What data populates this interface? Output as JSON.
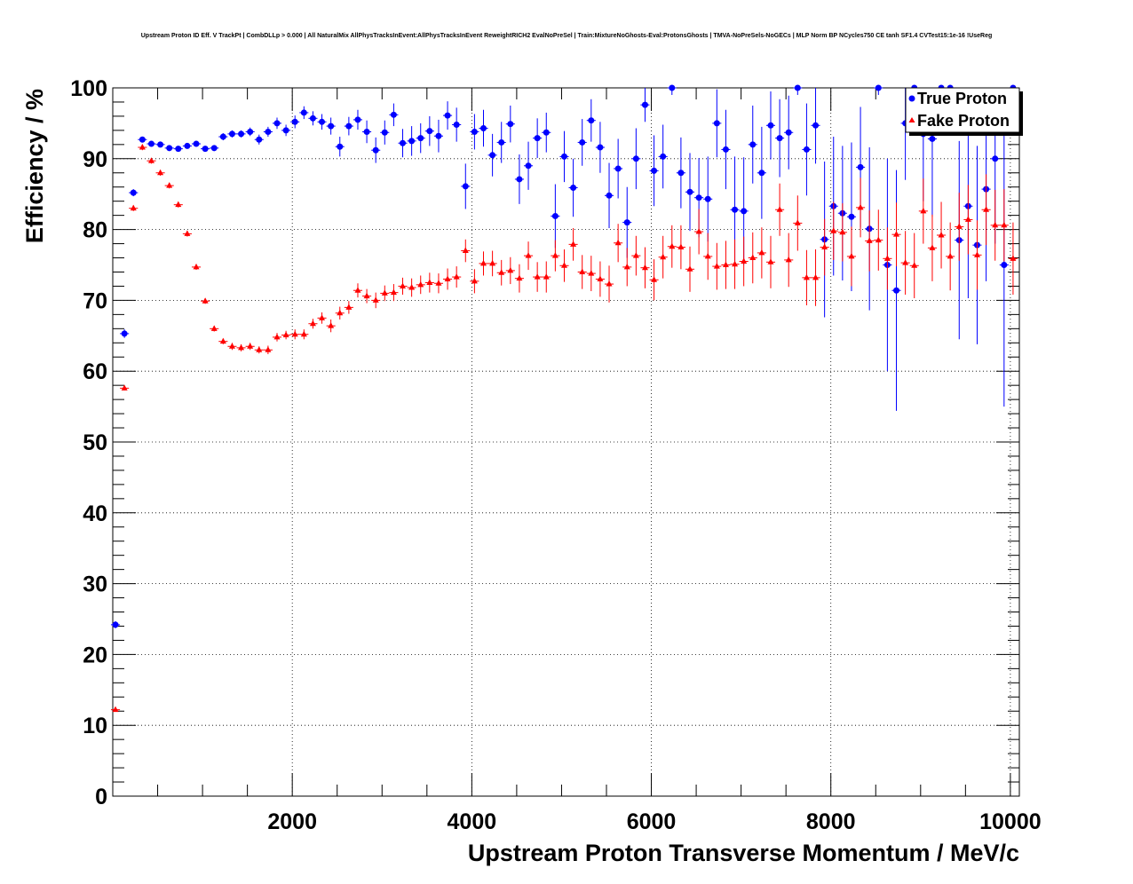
{
  "chart_data": {
    "type": "scatter",
    "title": "Upstream Proton ID Eff. V TrackPt | CombDLLp > 0.000 | All NaturalMix AllPhysTracksInEvent:AllPhysTracksInEvent ReweightRICH2 EvalNoPreSel | Train:MixtureNoGhosts-Eval:ProtonsGhosts | TMVA-NoPreSels-NoGECs | MLP Norm BP NCycles750 CE tanh SF1.4 CVTest15:1e-16 !UseReg",
    "xlabel": "Upstream Proton Transverse Momentum / MeV/c",
    "ylabel": "Efficiency / %",
    "xlim": [
      0,
      10100
    ],
    "ylim": [
      0,
      100
    ],
    "x_ticks": [
      "2000",
      "4000",
      "6000",
      "8000",
      "10000"
    ],
    "y_ticks": [
      "0",
      "10",
      "20",
      "30",
      "40",
      "50",
      "60",
      "70",
      "80",
      "90",
      "100"
    ],
    "grid": true,
    "legend_position": "top-right",
    "legend": [
      {
        "label": "True Proton",
        "color": "#0000ff",
        "marker": "circle"
      },
      {
        "label": "Fake Proton",
        "color": "#ff0000",
        "marker": "triangle"
      }
    ],
    "series": [
      {
        "name": "True Proton",
        "color": "#0000ff",
        "marker": "circle",
        "x": [
          30,
          130,
          230,
          330,
          430,
          530,
          630,
          730,
          830,
          930,
          1030,
          1130,
          1230,
          1330,
          1430,
          1530,
          1630,
          1730,
          1830,
          1930,
          2030,
          2130,
          2230,
          2330,
          2430,
          2530,
          2630,
          2730,
          2830,
          2930,
          3030,
          3130,
          3230,
          3330,
          3430,
          3530,
          3630,
          3730,
          3830,
          3930,
          4030,
          4130,
          4230,
          4330,
          4430,
          4530,
          4630,
          4730,
          4830,
          4930,
          5030,
          5130,
          5230,
          5330,
          5430,
          5530,
          5630,
          5730,
          5830,
          5930,
          6030,
          6130,
          6230,
          6330,
          6430,
          6530,
          6630,
          6730,
          6830,
          6930,
          7030,
          7130,
          7230,
          7330,
          7430,
          7530,
          7630,
          7730,
          7830,
          7930,
          8030,
          8130,
          8230,
          8330,
          8430,
          8530,
          8630,
          8730,
          8830,
          8930,
          9030,
          9130,
          9230,
          9330,
          9430,
          9530,
          9630,
          9730,
          9830,
          9930,
          10030
        ],
        "y": [
          24.2,
          65.3,
          85.2,
          92.7,
          92.1,
          92.0,
          91.5,
          91.4,
          91.8,
          92.1,
          91.4,
          91.5,
          93.1,
          93.5,
          93.5,
          93.8,
          92.7,
          93.8,
          95.0,
          94.0,
          95.2,
          96.5,
          95.7,
          95.2,
          94.6,
          91.7,
          94.6,
          95.5,
          93.8,
          91.2,
          93.7,
          96.2,
          92.2,
          92.5,
          92.9,
          93.9,
          93.2,
          96.1,
          94.8,
          86.1,
          93.8,
          94.3,
          90.5,
          92.3,
          94.9,
          87.1,
          89.0,
          92.9,
          93.7,
          81.9,
          90.3,
          85.9,
          92.3,
          95.4,
          91.6,
          84.8,
          88.6,
          81.0,
          90.0,
          97.6,
          88.3,
          90.3,
          100.0,
          88.0,
          85.3,
          84.5,
          84.3,
          95.0,
          91.3,
          82.8,
          82.6,
          92.0,
          88.0,
          94.7,
          92.9,
          93.7,
          100.0,
          91.3,
          94.7,
          78.6,
          83.3,
          82.3,
          81.8,
          88.8,
          80.1,
          100.0,
          75.0,
          71.4,
          95.0,
          100.0,
          93.5,
          92.8,
          100.0,
          100.0,
          78.5,
          83.3,
          77.8,
          85.7,
          90.0,
          75.0,
          100.0
        ],
        "yerr": [
          0.5,
          0.6,
          0.5,
          0.4,
          0.3,
          0.3,
          0.3,
          0.3,
          0.3,
          0.3,
          0.4,
          0.4,
          0.5,
          0.5,
          0.5,
          0.6,
          0.7,
          0.7,
          0.8,
          0.8,
          0.9,
          0.9,
          1.0,
          1.1,
          1.2,
          1.4,
          1.3,
          1.4,
          1.6,
          1.8,
          1.7,
          1.6,
          2.0,
          2.1,
          2.1,
          2.1,
          2.3,
          2.0,
          2.4,
          3.2,
          2.5,
          2.6,
          3.0,
          2.9,
          2.6,
          3.5,
          3.4,
          2.8,
          2.8,
          4.5,
          3.6,
          4.1,
          3.3,
          3.0,
          3.6,
          4.6,
          4.2,
          5.0,
          4.3,
          2.4,
          5.0,
          4.5,
          1.0,
          5.0,
          5.5,
          5.6,
          6.0,
          4.8,
          5.6,
          7.5,
          7.6,
          5.5,
          6.5,
          4.8,
          5.5,
          5.2,
          1.0,
          6.5,
          5.4,
          11.0,
          9.8,
          9.5,
          10.5,
          8.5,
          11.5,
          1.0,
          15.0,
          17.0,
          8.0,
          1.0,
          9.5,
          11.0,
          1.0,
          1.0,
          14.0,
          13.0,
          14.0,
          13.0,
          12.0,
          20.0,
          1.0
        ]
      },
      {
        "name": "Fake Proton",
        "color": "#ff0000",
        "marker": "triangle",
        "x": [
          30,
          130,
          230,
          330,
          430,
          530,
          630,
          730,
          830,
          930,
          1030,
          1130,
          1230,
          1330,
          1430,
          1530,
          1630,
          1730,
          1830,
          1930,
          2030,
          2130,
          2230,
          2330,
          2430,
          2530,
          2630,
          2730,
          2830,
          2930,
          3030,
          3130,
          3230,
          3330,
          3430,
          3530,
          3630,
          3730,
          3830,
          3930,
          4030,
          4130,
          4230,
          4330,
          4430,
          4530,
          4630,
          4730,
          4830,
          4930,
          5030,
          5130,
          5230,
          5330,
          5430,
          5530,
          5630,
          5730,
          5830,
          5930,
          6030,
          6130,
          6230,
          6330,
          6430,
          6530,
          6630,
          6730,
          6830,
          6930,
          7030,
          7130,
          7230,
          7330,
          7430,
          7530,
          7630,
          7730,
          7830,
          7930,
          8030,
          8130,
          8230,
          8330,
          8430,
          8530,
          8630,
          8730,
          8830,
          8930,
          9030,
          9130,
          9230,
          9330,
          9430,
          9530,
          9630,
          9730,
          9830,
          9930,
          10030
        ],
        "y": [
          12.2,
          57.6,
          83.0,
          91.6,
          89.7,
          88.0,
          86.2,
          83.5,
          79.4,
          74.7,
          69.9,
          66.0,
          64.2,
          63.5,
          63.3,
          63.5,
          63.0,
          63.0,
          64.8,
          65.1,
          65.2,
          65.2,
          66.7,
          67.5,
          66.4,
          68.2,
          69.0,
          71.4,
          70.6,
          70.0,
          71.0,
          71.1,
          72.0,
          71.8,
          72.2,
          72.5,
          72.4,
          73.0,
          73.3,
          77.0,
          72.7,
          75.2,
          75.2,
          73.9,
          74.2,
          73.1,
          76.3,
          73.3,
          73.3,
          76.3,
          74.9,
          77.9,
          74.0,
          73.8,
          73.0,
          72.3,
          78.1,
          74.7,
          76.3,
          74.6,
          72.9,
          76.1,
          77.6,
          77.5,
          74.4,
          79.7,
          76.2,
          74.8,
          75.0,
          75.1,
          75.5,
          76.0,
          76.7,
          75.4,
          82.8,
          75.7,
          80.9,
          73.2,
          73.2,
          77.5,
          79.8,
          79.6,
          76.2,
          83.1,
          78.4,
          78.5,
          75.9,
          79.3,
          75.3,
          74.9,
          82.6,
          77.4,
          79.2,
          76.2,
          80.4,
          81.4,
          76.4,
          82.8,
          80.6,
          80.6,
          75.9
        ],
        "yerr": [
          0.2,
          0.3,
          0.4,
          0.4,
          0.4,
          0.4,
          0.4,
          0.4,
          0.4,
          0.4,
          0.4,
          0.4,
          0.4,
          0.5,
          0.5,
          0.5,
          0.5,
          0.6,
          0.6,
          0.6,
          0.7,
          0.7,
          0.7,
          0.8,
          0.9,
          0.9,
          0.9,
          1.0,
          1.0,
          1.1,
          1.1,
          1.2,
          1.2,
          1.3,
          1.3,
          1.4,
          1.4,
          1.5,
          1.5,
          1.6,
          1.7,
          1.7,
          1.8,
          1.8,
          1.9,
          2.0,
          2.0,
          2.1,
          2.2,
          2.2,
          2.3,
          2.3,
          2.4,
          2.5,
          2.5,
          2.6,
          2.7,
          2.7,
          2.8,
          2.9,
          2.9,
          3.0,
          3.0,
          3.1,
          3.2,
          3.2,
          3.3,
          3.3,
          3.4,
          3.5,
          3.5,
          3.6,
          3.6,
          3.7,
          3.7,
          3.8,
          3.9,
          3.9,
          4.0,
          4.0,
          4.1,
          4.1,
          4.2,
          4.2,
          4.3,
          4.3,
          4.4,
          4.5,
          4.5,
          4.6,
          4.6,
          4.7,
          4.7,
          4.8,
          4.8,
          4.9,
          4.9,
          5.0,
          5.0,
          5.1,
          5.1
        ]
      }
    ]
  }
}
